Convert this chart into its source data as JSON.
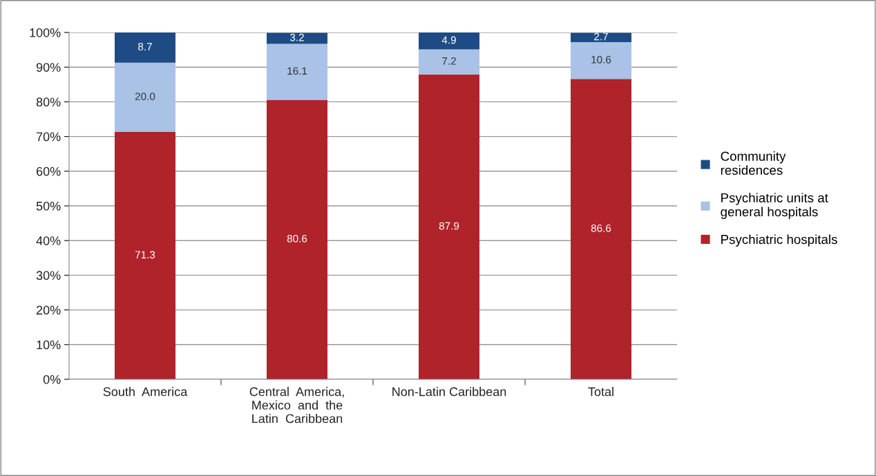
{
  "chart_data": {
    "type": "bar",
    "stacked": true,
    "categories": [
      "South  America",
      "Central  America,\nMexico  and  the\nLatin  Caribbean",
      "Non-Latin Caribbean",
      "Total"
    ],
    "series": [
      {
        "name": "Psychiatric hospitals",
        "color": "#b0232b",
        "values": [
          71.3,
          80.6,
          87.9,
          86.6
        ],
        "value_labels": [
          "71.3",
          "80.6",
          "87.9",
          "86.6"
        ]
      },
      {
        "name": "Psychiatric units at\ngeneral hospitals",
        "color": "#a9c2e6",
        "values": [
          20.0,
          16.1,
          7.2,
          10.6
        ],
        "value_labels": [
          "20.0",
          "16.1",
          "7.2",
          "10.6"
        ]
      },
      {
        "name": "Community\nresidences",
        "color": "#1f4b85",
        "values": [
          8.7,
          3.2,
          4.9,
          2.7
        ],
        "value_labels": [
          "8.7",
          "3.2",
          "4.9",
          "2.7"
        ]
      }
    ],
    "ylim": [
      0,
      100
    ],
    "yticks": [
      {
        "value": 0,
        "label": "0%"
      },
      {
        "value": 10,
        "label": "10%"
      },
      {
        "value": 20,
        "label": "20%"
      },
      {
        "value": 30,
        "label": "30%"
      },
      {
        "value": 40,
        "label": "40%"
      },
      {
        "value": 50,
        "label": "50%"
      },
      {
        "value": 60,
        "label": "60%"
      },
      {
        "value": 70,
        "label": "70%"
      },
      {
        "value": 80,
        "label": "80%"
      },
      {
        "value": 90,
        "label": "90%"
      },
      {
        "value": 100,
        "label": "100%"
      }
    ],
    "grid": "y",
    "legend": "right"
  }
}
